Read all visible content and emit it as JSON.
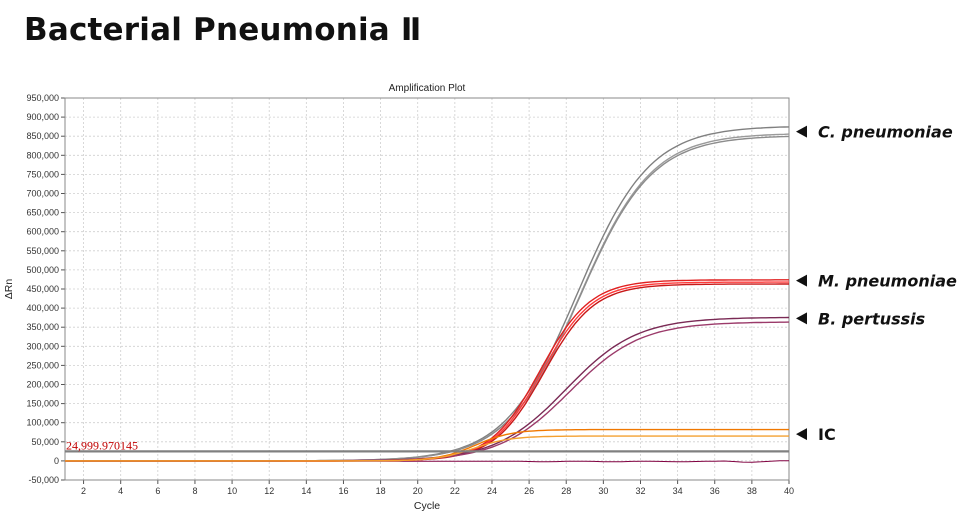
{
  "page": {
    "title": "Bacterial Pneumonia Ⅱ"
  },
  "chart_data": {
    "type": "line",
    "title": "Amplification Plot",
    "xlabel": "Cycle",
    "ylabel": "ΔRn",
    "xlim": [
      1,
      40
    ],
    "ylim": [
      -50000,
      950000
    ],
    "x_ticks": [
      2,
      4,
      6,
      8,
      10,
      12,
      14,
      16,
      18,
      20,
      22,
      24,
      26,
      28,
      30,
      32,
      34,
      36,
      38,
      40
    ],
    "y_ticks": [
      -50000,
      0,
      50000,
      100000,
      150000,
      200000,
      250000,
      300000,
      350000,
      400000,
      450000,
      500000,
      550000,
      600000,
      650000,
      700000,
      750000,
      800000,
      850000,
      900000,
      950000
    ],
    "y_tick_labels": [
      "-50,000",
      "0",
      "50,000",
      "100,000",
      "150,000",
      "200,000",
      "250,000",
      "300,000",
      "350,000",
      "400,000",
      "450,000",
      "500,000",
      "550,000",
      "600,000",
      "650,000",
      "700,000",
      "750,000",
      "800,000",
      "850,000",
      "900,000",
      "950,000"
    ],
    "grid": true,
    "threshold": {
      "value": 24999.970145,
      "label": "24,999.970145",
      "color": "#808080"
    },
    "series": [
      {
        "name": "C. pneumoniae",
        "color": "#808080",
        "plateau": 877000,
        "midpoint": 28.6,
        "slope": 1.95
      },
      {
        "name": "C. pneumoniae",
        "color": "#9a9a9a",
        "plateau": 858000,
        "midpoint": 28.7,
        "slope": 1.95
      },
      {
        "name": "C. pneumoniae",
        "color": "#8c8c8c",
        "plateau": 852000,
        "midpoint": 28.7,
        "slope": 1.95
      },
      {
        "name": "M. pneumoniae",
        "color": "#e02020",
        "plateau": 474000,
        "midpoint": 26.6,
        "slope": 1.35
      },
      {
        "name": "M. pneumoniae",
        "color": "#ff3a3a",
        "plateau": 468000,
        "midpoint": 26.7,
        "slope": 1.35
      },
      {
        "name": "M. pneumoniae",
        "color": "#c81818",
        "plateau": 463000,
        "midpoint": 26.8,
        "slope": 1.35
      },
      {
        "name": "B. pertussis",
        "color": "#7a2a55",
        "plateau": 376000,
        "midpoint": 28.0,
        "slope": 1.9
      },
      {
        "name": "B. pertussis",
        "color": "#9b3a6a",
        "plateau": 364000,
        "midpoint": 28.2,
        "slope": 1.9
      },
      {
        "name": "IC",
        "color": "#f07800",
        "plateau": 82000,
        "midpoint": 23.1,
        "slope": 1.0
      },
      {
        "name": "IC",
        "color": "#f4a030",
        "plateau": 65000,
        "midpoint": 23.0,
        "slope": 1.0
      }
    ],
    "annotations": [
      {
        "text": "C. pneumoniae",
        "y": 862000,
        "italic": true
      },
      {
        "text": "M. pneumoniae",
        "y": 472000,
        "italic": true
      },
      {
        "text": "B. pertussis",
        "y": 373000,
        "italic": true
      },
      {
        "text": "IC",
        "y": 70000,
        "italic": false
      }
    ],
    "baseline_noise": {
      "color": "#800040"
    }
  }
}
